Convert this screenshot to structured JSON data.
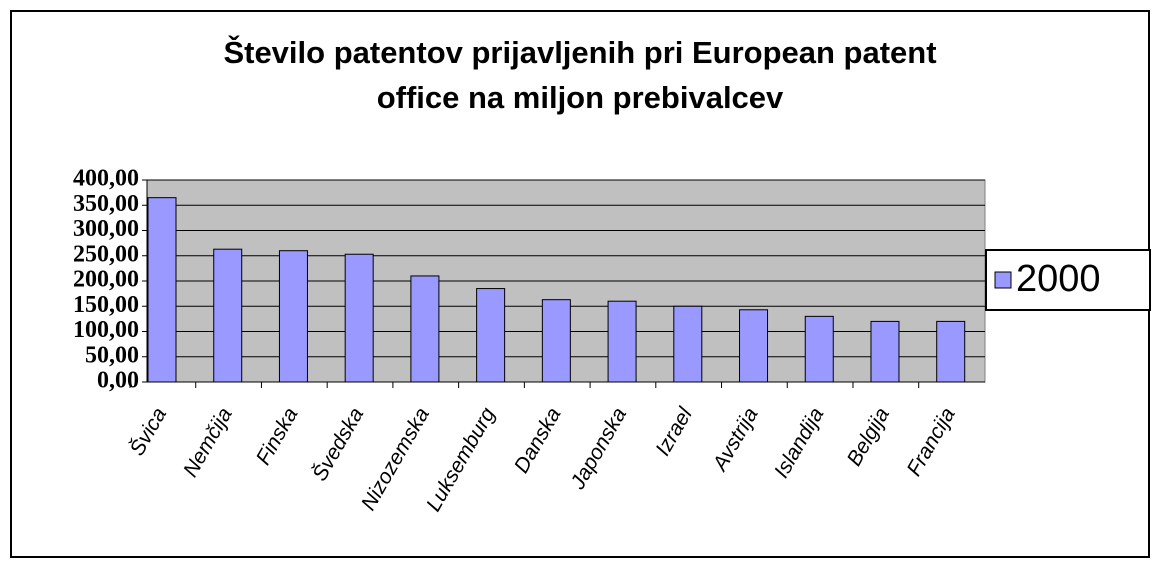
{
  "chart_data": {
    "type": "bar",
    "title_lines": [
      "Število patentov prijavljenih pri European patent",
      "office na miljon prebivalcev"
    ],
    "categories": [
      "Švica",
      "Nemčija",
      "Finska",
      "Švedska",
      "Nizozemska",
      "Luksemburg",
      "Danska",
      "Japonska",
      "Izrael",
      "Avstrija",
      "Islandija",
      "Belgija",
      "Francija"
    ],
    "series": [
      {
        "name": "2000",
        "color": "#9999ff",
        "values": [
          365,
          263,
          260,
          253,
          210,
          185,
          163,
          160,
          150,
          143,
          130,
          120,
          120
        ]
      }
    ],
    "ylim": [
      0,
      400
    ],
    "yticks": [
      {
        "value": 0,
        "label": "0,00"
      },
      {
        "value": 50,
        "label": "50,00"
      },
      {
        "value": 100,
        "label": "100,00"
      },
      {
        "value": 150,
        "label": "150,00"
      },
      {
        "value": 200,
        "label": "200,00"
      },
      {
        "value": 250,
        "label": "250,00"
      },
      {
        "value": 300,
        "label": "300,00"
      },
      {
        "value": 350,
        "label": "350,00"
      },
      {
        "value": 400,
        "label": "400,00"
      }
    ],
    "grid": true,
    "legend": "right"
  }
}
